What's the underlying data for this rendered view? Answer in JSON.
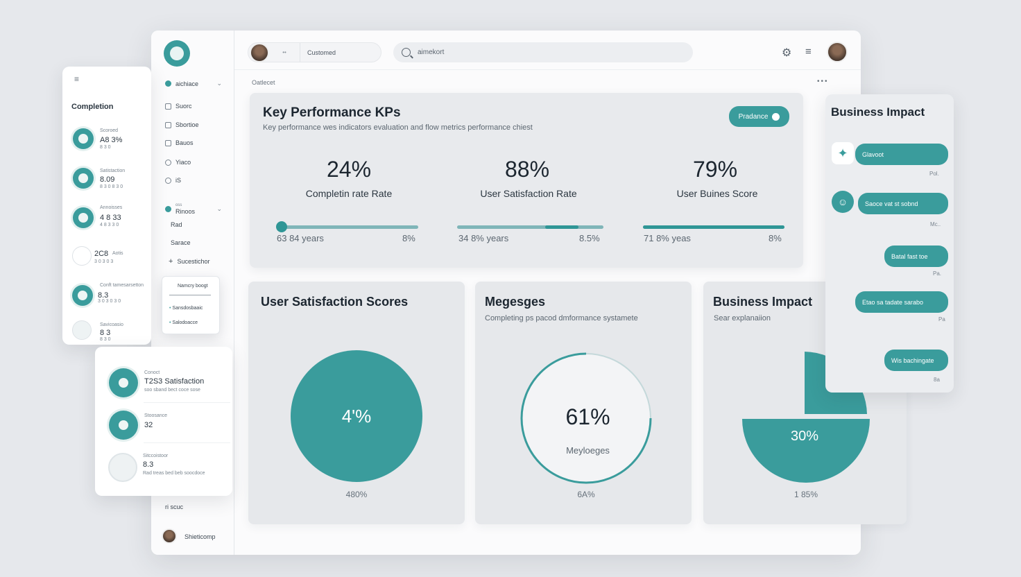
{
  "left_panel": {
    "title": "Completion",
    "items": [
      {
        "label": "Scoroed",
        "value": "A8 3%",
        "sub": "8 3 0"
      },
      {
        "label": "Satistaction",
        "value": "8.09",
        "sub": "8 3 0 8 3 0"
      },
      {
        "label": "Annoisses",
        "value": "4 8 33",
        "sub": "4 8 3 3 0"
      },
      {
        "label": "Aotis",
        "value": "2C8",
        "sub": "3 0 3 0 3"
      },
      {
        "label": "Conft tamesarsetton",
        "value": "8.3",
        "sub": "3 0 3 0 3 0"
      },
      {
        "label": "Savicoasio",
        "value": "8 3",
        "sub": "8 3 0"
      }
    ]
  },
  "sidebar": {
    "items": [
      {
        "label": "aichiace",
        "has_chevron": true
      },
      {
        "label": "Suorc"
      },
      {
        "label": "Sbortioe"
      },
      {
        "label": "Bauos"
      },
      {
        "label": "Yiaco"
      },
      {
        "label": "iS"
      },
      {
        "label": "Rinoos",
        "prefix": "oss",
        "has_chevron": true
      },
      {
        "label": "Rad"
      },
      {
        "label": "Sarace"
      },
      {
        "label": "Sucestichor"
      }
    ],
    "footer_label": "ri scuc",
    "user_name": "Shieticomp"
  },
  "dropdown": {
    "header": "Namcry boogt",
    "items": [
      "Sansdosbaaic",
      "Salodoacce"
    ]
  },
  "lower_panel": {
    "items": [
      {
        "label": "Conoct",
        "value": "T2S3 Satisfaction",
        "sub": "soo sband bect coce sose"
      },
      {
        "label": "Stoosance",
        "value": "32",
        "sub": ""
      },
      {
        "label": "Sitccoistoor",
        "value": "8.3",
        "sub": "Rad treas bed beb soocdoce"
      }
    ]
  },
  "topbar": {
    "user_label": "Customed",
    "search_placeholder": "aimekort",
    "breadcrumb": "Oatlecet"
  },
  "kpi": {
    "title": "Key Performance KPs",
    "subtitle": "Key performance wes indicators evaluation and flow metrics performance chiest",
    "button_label": "Pradance",
    "metrics": [
      {
        "value": "24%",
        "label": "Completin rate Rate",
        "left": "63 84 years",
        "right": "8%",
        "fill": 0.04
      },
      {
        "value": "88%",
        "label": "User Satisfaction Rate",
        "left": "34 8% years",
        "right": "8.5%",
        "fill": 0.6
      },
      {
        "value": "79%",
        "label": "User Buines Score",
        "left": "71 8% yeas",
        "right": "8%",
        "fill": 1.0
      }
    ]
  },
  "cards": [
    {
      "title": "User Satisfaction Scores",
      "subtitle": "",
      "center_value": "4'%",
      "foot": "480%"
    },
    {
      "title": "Megesges",
      "subtitle": "Completing ps pacod dmformance systamete",
      "center_value": "61%",
      "center_label": "Meyloeges",
      "foot": "6A%"
    },
    {
      "title": "Business Impact",
      "subtitle": "Sear explanaiion",
      "center_value": "30%",
      "foot": "1 85%"
    }
  ],
  "right_panel": {
    "title": "Business Impact",
    "messages": [
      {
        "text": "Glavoot",
        "time": "Pol.",
        "side": "right",
        "icon": true
      },
      {
        "text": "Saoce vat st sobnd",
        "time": "Mc..",
        "side": "right",
        "icon": true
      },
      {
        "text": "Batal fast toe",
        "time": "Pa.",
        "side": "right",
        "icon": false
      },
      {
        "text": "Etao sa tadate sarabo",
        "time": "Pa",
        "side": "right",
        "icon": false
      },
      {
        "text": "Wis bachingate",
        "time": "8a",
        "side": "right",
        "icon": false
      }
    ]
  },
  "colors": {
    "accent": "#3a9c9c",
    "card_bg": "#e6e8eb",
    "page_bg": "#e6e8ec"
  }
}
